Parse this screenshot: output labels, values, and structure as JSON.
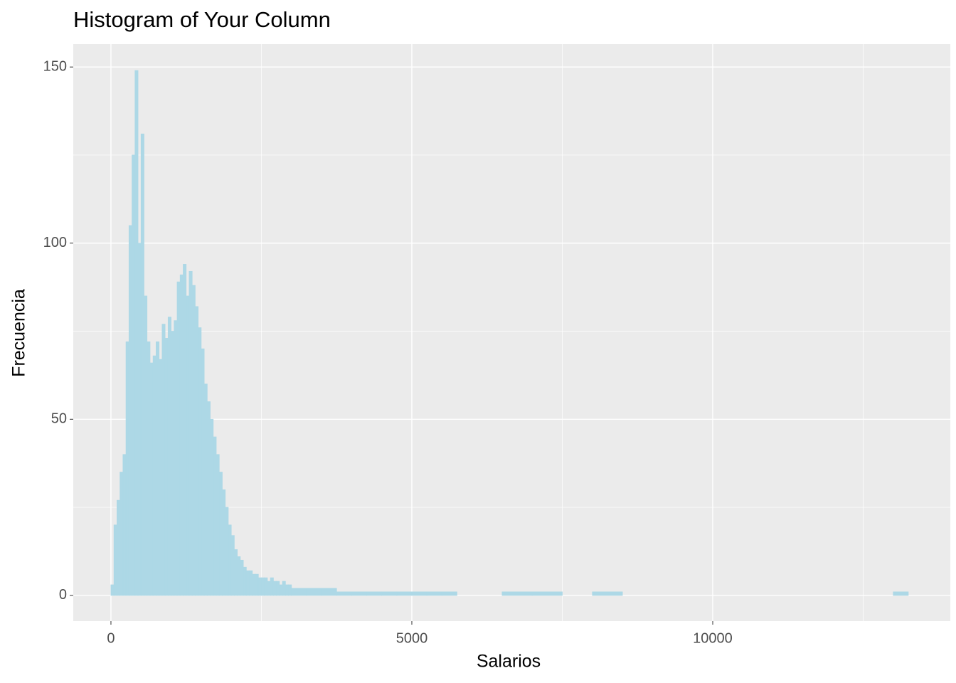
{
  "chart_data": {
    "type": "histogram",
    "title": "Histogram of Your Column",
    "x_label": "Salarios",
    "y_label": "Frecuencia",
    "color": "#add8e6",
    "bins": [
      0,
      50,
      100,
      150,
      200,
      250,
      300,
      350,
      400,
      450,
      500,
      550,
      600,
      650,
      700,
      750,
      800,
      850,
      900,
      950,
      1000,
      1050,
      1100,
      1150,
      1200,
      1250,
      1300,
      1350,
      1400,
      1450,
      1500,
      1550,
      1600,
      1650,
      1700,
      1750,
      1800,
      1850,
      1900,
      1950,
      2000,
      2050,
      2100,
      2150,
      2200,
      2250,
      2300,
      2350,
      2400,
      2450,
      2500,
      2550,
      2600,
      2650,
      2700,
      2750,
      2800,
      2850,
      2900,
      2950,
      3000,
      3250,
      3500,
      3750,
      4000,
      4250,
      4500,
      4750,
      5000,
      5250,
      5500,
      5750,
      6000,
      6500,
      7000,
      7500,
      8000,
      8500,
      13000,
      13250
    ],
    "values": [
      3,
      20,
      27,
      35,
      40,
      72,
      105,
      125,
      149,
      100,
      131,
      85,
      72,
      66,
      68,
      72,
      67,
      77,
      73,
      79,
      75,
      78,
      89,
      91,
      94,
      85,
      92,
      88,
      82,
      76,
      70,
      60,
      55,
      50,
      45,
      40,
      35,
      30,
      25,
      20,
      17,
      13,
      11,
      10,
      8,
      7,
      7,
      6,
      6,
      5,
      5,
      5,
      4,
      5,
      4,
      4,
      3,
      4,
      3,
      3,
      2,
      2,
      2,
      1,
      1,
      1,
      1,
      1,
      1,
      1,
      1,
      0,
      0,
      1,
      1,
      0,
      1,
      0,
      1
    ],
    "xlim": [
      -626,
      13948
    ],
    "ylim": [
      -7.3,
      156.5
    ],
    "xticks": [
      0,
      5000,
      10000
    ],
    "yticks": [
      0,
      50,
      100,
      150
    ],
    "xminor": [
      2500,
      7500,
      12500
    ],
    "yminor": [
      25,
      75,
      125
    ],
    "grid": true
  }
}
